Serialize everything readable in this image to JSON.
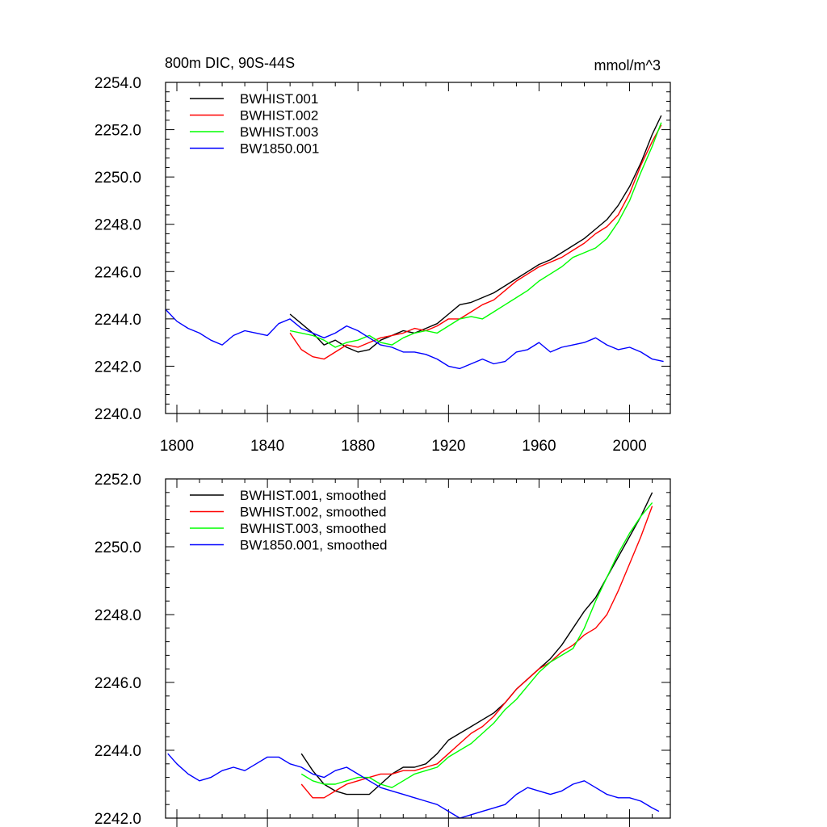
{
  "chart_data": [
    {
      "type": "line",
      "title": "800m DIC, 90S-44S",
      "units": "mmol/m^3",
      "xlabel": "",
      "ylabel": "",
      "xlim": [
        1795,
        2018
      ],
      "ylim": [
        2240,
        2254
      ],
      "xticks": [
        1800,
        1840,
        1880,
        1920,
        1960,
        2000
      ],
      "xtick_labels": [
        "1800",
        "1840",
        "1880",
        "1920",
        "1960",
        "2000"
      ],
      "yticks": [
        2240,
        2242,
        2244,
        2246,
        2248,
        2250,
        2252,
        2254
      ],
      "ytick_labels": [
        "2240.0",
        "2242.0",
        "2244.0",
        "2246.0",
        "2248.0",
        "2250.0",
        "2252.0",
        "2254.0"
      ],
      "legend_position": "top-left",
      "series": [
        {
          "name": "BWHIST.001",
          "color": "#000000",
          "x": [
            1850,
            1855,
            1860,
            1865,
            1870,
            1875,
            1880,
            1885,
            1890,
            1895,
            1900,
            1905,
            1910,
            1915,
            1920,
            1925,
            1930,
            1935,
            1940,
            1945,
            1950,
            1955,
            1960,
            1965,
            1970,
            1975,
            1980,
            1985,
            1990,
            1995,
            2000,
            2005,
            2010,
            2014
          ],
          "y": [
            2244.2,
            2243.8,
            2243.4,
            2242.9,
            2243.1,
            2242.8,
            2242.6,
            2242.7,
            2243.1,
            2243.3,
            2243.5,
            2243.4,
            2243.6,
            2243.8,
            2244.2,
            2244.6,
            2244.7,
            2244.9,
            2245.1,
            2245.4,
            2245.7,
            2246.0,
            2246.3,
            2246.5,
            2246.8,
            2247.1,
            2247.4,
            2247.8,
            2248.2,
            2248.8,
            2249.6,
            2250.6,
            2251.8,
            2252.6
          ]
        },
        {
          "name": "BWHIST.002",
          "color": "#ff0000",
          "x": [
            1850,
            1855,
            1860,
            1865,
            1870,
            1875,
            1880,
            1885,
            1890,
            1895,
            1900,
            1905,
            1910,
            1915,
            1920,
            1925,
            1930,
            1935,
            1940,
            1945,
            1950,
            1955,
            1960,
            1965,
            1970,
            1975,
            1980,
            1985,
            1990,
            1995,
            2000,
            2005,
            2010,
            2014
          ],
          "y": [
            2243.4,
            2242.7,
            2242.4,
            2242.3,
            2242.6,
            2242.9,
            2242.8,
            2243.0,
            2243.2,
            2243.3,
            2243.4,
            2243.6,
            2243.5,
            2243.7,
            2244.0,
            2244.0,
            2244.3,
            2244.6,
            2244.8,
            2245.2,
            2245.6,
            2245.9,
            2246.2,
            2246.4,
            2246.6,
            2246.9,
            2247.2,
            2247.6,
            2247.9,
            2248.4,
            2249.3,
            2250.5,
            2251.5,
            2252.2
          ]
        },
        {
          "name": "BWHIST.003",
          "color": "#00ff00",
          "x": [
            1850,
            1855,
            1860,
            1865,
            1870,
            1875,
            1880,
            1885,
            1890,
            1895,
            1900,
            1905,
            1910,
            1915,
            1920,
            1925,
            1930,
            1935,
            1940,
            1945,
            1950,
            1955,
            1960,
            1965,
            1970,
            1975,
            1980,
            1985,
            1990,
            1995,
            2000,
            2005,
            2010,
            2014
          ],
          "y": [
            2243.5,
            2243.4,
            2243.3,
            2243.1,
            2242.8,
            2243.0,
            2243.1,
            2243.3,
            2243.0,
            2242.9,
            2243.2,
            2243.4,
            2243.5,
            2243.4,
            2243.7,
            2244.0,
            2244.1,
            2244.0,
            2244.3,
            2244.6,
            2244.9,
            2245.2,
            2245.6,
            2245.9,
            2246.2,
            2246.6,
            2246.8,
            2247.0,
            2247.4,
            2248.1,
            2249.0,
            2250.2,
            2251.3,
            2252.3
          ]
        },
        {
          "name": "BW1850.001",
          "color": "#0000ff",
          "x": [
            1795,
            1800,
            1805,
            1810,
            1815,
            1820,
            1825,
            1830,
            1835,
            1840,
            1845,
            1850,
            1855,
            1860,
            1865,
            1870,
            1875,
            1880,
            1885,
            1890,
            1895,
            1900,
            1905,
            1910,
            1915,
            1920,
            1925,
            1930,
            1935,
            1940,
            1945,
            1950,
            1955,
            1960,
            1965,
            1970,
            1975,
            1980,
            1985,
            1990,
            1995,
            2000,
            2005,
            2010,
            2015
          ],
          "y": [
            2244.4,
            2243.9,
            2243.6,
            2243.4,
            2243.1,
            2242.9,
            2243.3,
            2243.5,
            2243.4,
            2243.3,
            2243.8,
            2244.0,
            2243.6,
            2243.4,
            2243.2,
            2243.4,
            2243.7,
            2243.5,
            2243.2,
            2242.9,
            2242.8,
            2242.6,
            2242.6,
            2242.5,
            2242.3,
            2242.0,
            2241.9,
            2242.1,
            2242.3,
            2242.1,
            2242.2,
            2242.6,
            2242.7,
            2243.0,
            2242.6,
            2242.8,
            2242.9,
            2243.0,
            2243.2,
            2242.9,
            2242.7,
            2242.8,
            2242.6,
            2242.3,
            2242.2
          ]
        }
      ]
    },
    {
      "type": "line",
      "title": "",
      "xlabel": "",
      "ylabel": "",
      "xlim": [
        1795,
        2018
      ],
      "ylim": [
        2242,
        2252
      ],
      "xticks": [
        1800,
        1840,
        1880,
        1920,
        1960,
        2000
      ],
      "yticks": [
        2242,
        2244,
        2246,
        2248,
        2250,
        2252
      ],
      "ytick_labels": [
        "2242.0",
        "2244.0",
        "2246.0",
        "2248.0",
        "2250.0",
        "2252.0"
      ],
      "legend_position": "top-left",
      "series": [
        {
          "name": "BWHIST.001, smoothed",
          "color": "#000000",
          "x": [
            1855,
            1860,
            1865,
            1870,
            1875,
            1880,
            1885,
            1890,
            1895,
            1900,
            1905,
            1910,
            1915,
            1920,
            1925,
            1930,
            1935,
            1940,
            1945,
            1950,
            1955,
            1960,
            1965,
            1970,
            1975,
            1980,
            1985,
            1990,
            1995,
            2000,
            2005,
            2010
          ],
          "y": [
            2243.9,
            2243.4,
            2243.0,
            2242.8,
            2242.7,
            2242.7,
            2242.7,
            2243.0,
            2243.3,
            2243.5,
            2243.5,
            2243.6,
            2243.9,
            2244.3,
            2244.5,
            2244.7,
            2244.9,
            2245.1,
            2245.4,
            2245.8,
            2246.1,
            2246.4,
            2246.7,
            2247.1,
            2247.6,
            2248.1,
            2248.5,
            2249.1,
            2249.7,
            2250.3,
            2250.9,
            2251.6
          ]
        },
        {
          "name": "BWHIST.002, smoothed",
          "color": "#ff0000",
          "x": [
            1855,
            1860,
            1865,
            1870,
            1875,
            1880,
            1885,
            1890,
            1895,
            1900,
            1905,
            1910,
            1915,
            1920,
            1925,
            1930,
            1935,
            1940,
            1945,
            1950,
            1955,
            1960,
            1965,
            1970,
            1975,
            1980,
            1985,
            1990,
            1995,
            2000,
            2005,
            2010
          ],
          "y": [
            2243.0,
            2242.6,
            2242.6,
            2242.8,
            2243.0,
            2243.1,
            2243.2,
            2243.3,
            2243.3,
            2243.4,
            2243.4,
            2243.5,
            2243.6,
            2243.9,
            2244.2,
            2244.5,
            2244.7,
            2245.0,
            2245.4,
            2245.8,
            2246.1,
            2246.4,
            2246.6,
            2246.9,
            2247.1,
            2247.4,
            2247.6,
            2248.0,
            2248.7,
            2249.5,
            2250.3,
            2251.2
          ]
        },
        {
          "name": "BWHIST.003, smoothed",
          "color": "#00ff00",
          "x": [
            1855,
            1860,
            1865,
            1870,
            1875,
            1880,
            1885,
            1890,
            1895,
            1900,
            1905,
            1910,
            1915,
            1920,
            1925,
            1930,
            1935,
            1940,
            1945,
            1950,
            1955,
            1960,
            1965,
            1970,
            1975,
            1980,
            1985,
            1990,
            1995,
            2000,
            2005,
            2010
          ],
          "y": [
            2243.3,
            2243.1,
            2243.0,
            2243.0,
            2243.1,
            2243.2,
            2243.2,
            2243.0,
            2242.9,
            2243.1,
            2243.3,
            2243.4,
            2243.5,
            2243.8,
            2244.0,
            2244.2,
            2244.5,
            2244.8,
            2245.2,
            2245.5,
            2245.9,
            2246.3,
            2246.6,
            2246.8,
            2247.0,
            2247.6,
            2248.4,
            2249.1,
            2249.8,
            2250.4,
            2250.9,
            2251.3
          ]
        },
        {
          "name": "BW1850.001, smoothed",
          "color": "#0000ff",
          "x": [
            1796,
            1800,
            1805,
            1810,
            1815,
            1820,
            1825,
            1830,
            1835,
            1840,
            1845,
            1850,
            1855,
            1860,
            1865,
            1870,
            1875,
            1880,
            1885,
            1890,
            1895,
            1900,
            1905,
            1910,
            1915,
            1920,
            1925,
            1930,
            1935,
            1940,
            1945,
            1950,
            1955,
            1960,
            1965,
            1970,
            1975,
            1980,
            1985,
            1990,
            1995,
            2000,
            2005,
            2010,
            2013
          ],
          "y": [
            2243.9,
            2243.6,
            2243.3,
            2243.1,
            2243.2,
            2243.4,
            2243.5,
            2243.4,
            2243.6,
            2243.8,
            2243.8,
            2243.6,
            2243.5,
            2243.3,
            2243.2,
            2243.4,
            2243.5,
            2243.3,
            2243.1,
            2242.9,
            2242.8,
            2242.7,
            2242.6,
            2242.5,
            2242.4,
            2242.2,
            2242.0,
            2242.1,
            2242.2,
            2242.3,
            2242.4,
            2242.7,
            2242.9,
            2242.8,
            2242.7,
            2242.8,
            2243.0,
            2243.1,
            2242.9,
            2242.7,
            2242.6,
            2242.6,
            2242.5,
            2242.3,
            2242.2
          ]
        }
      ]
    }
  ]
}
